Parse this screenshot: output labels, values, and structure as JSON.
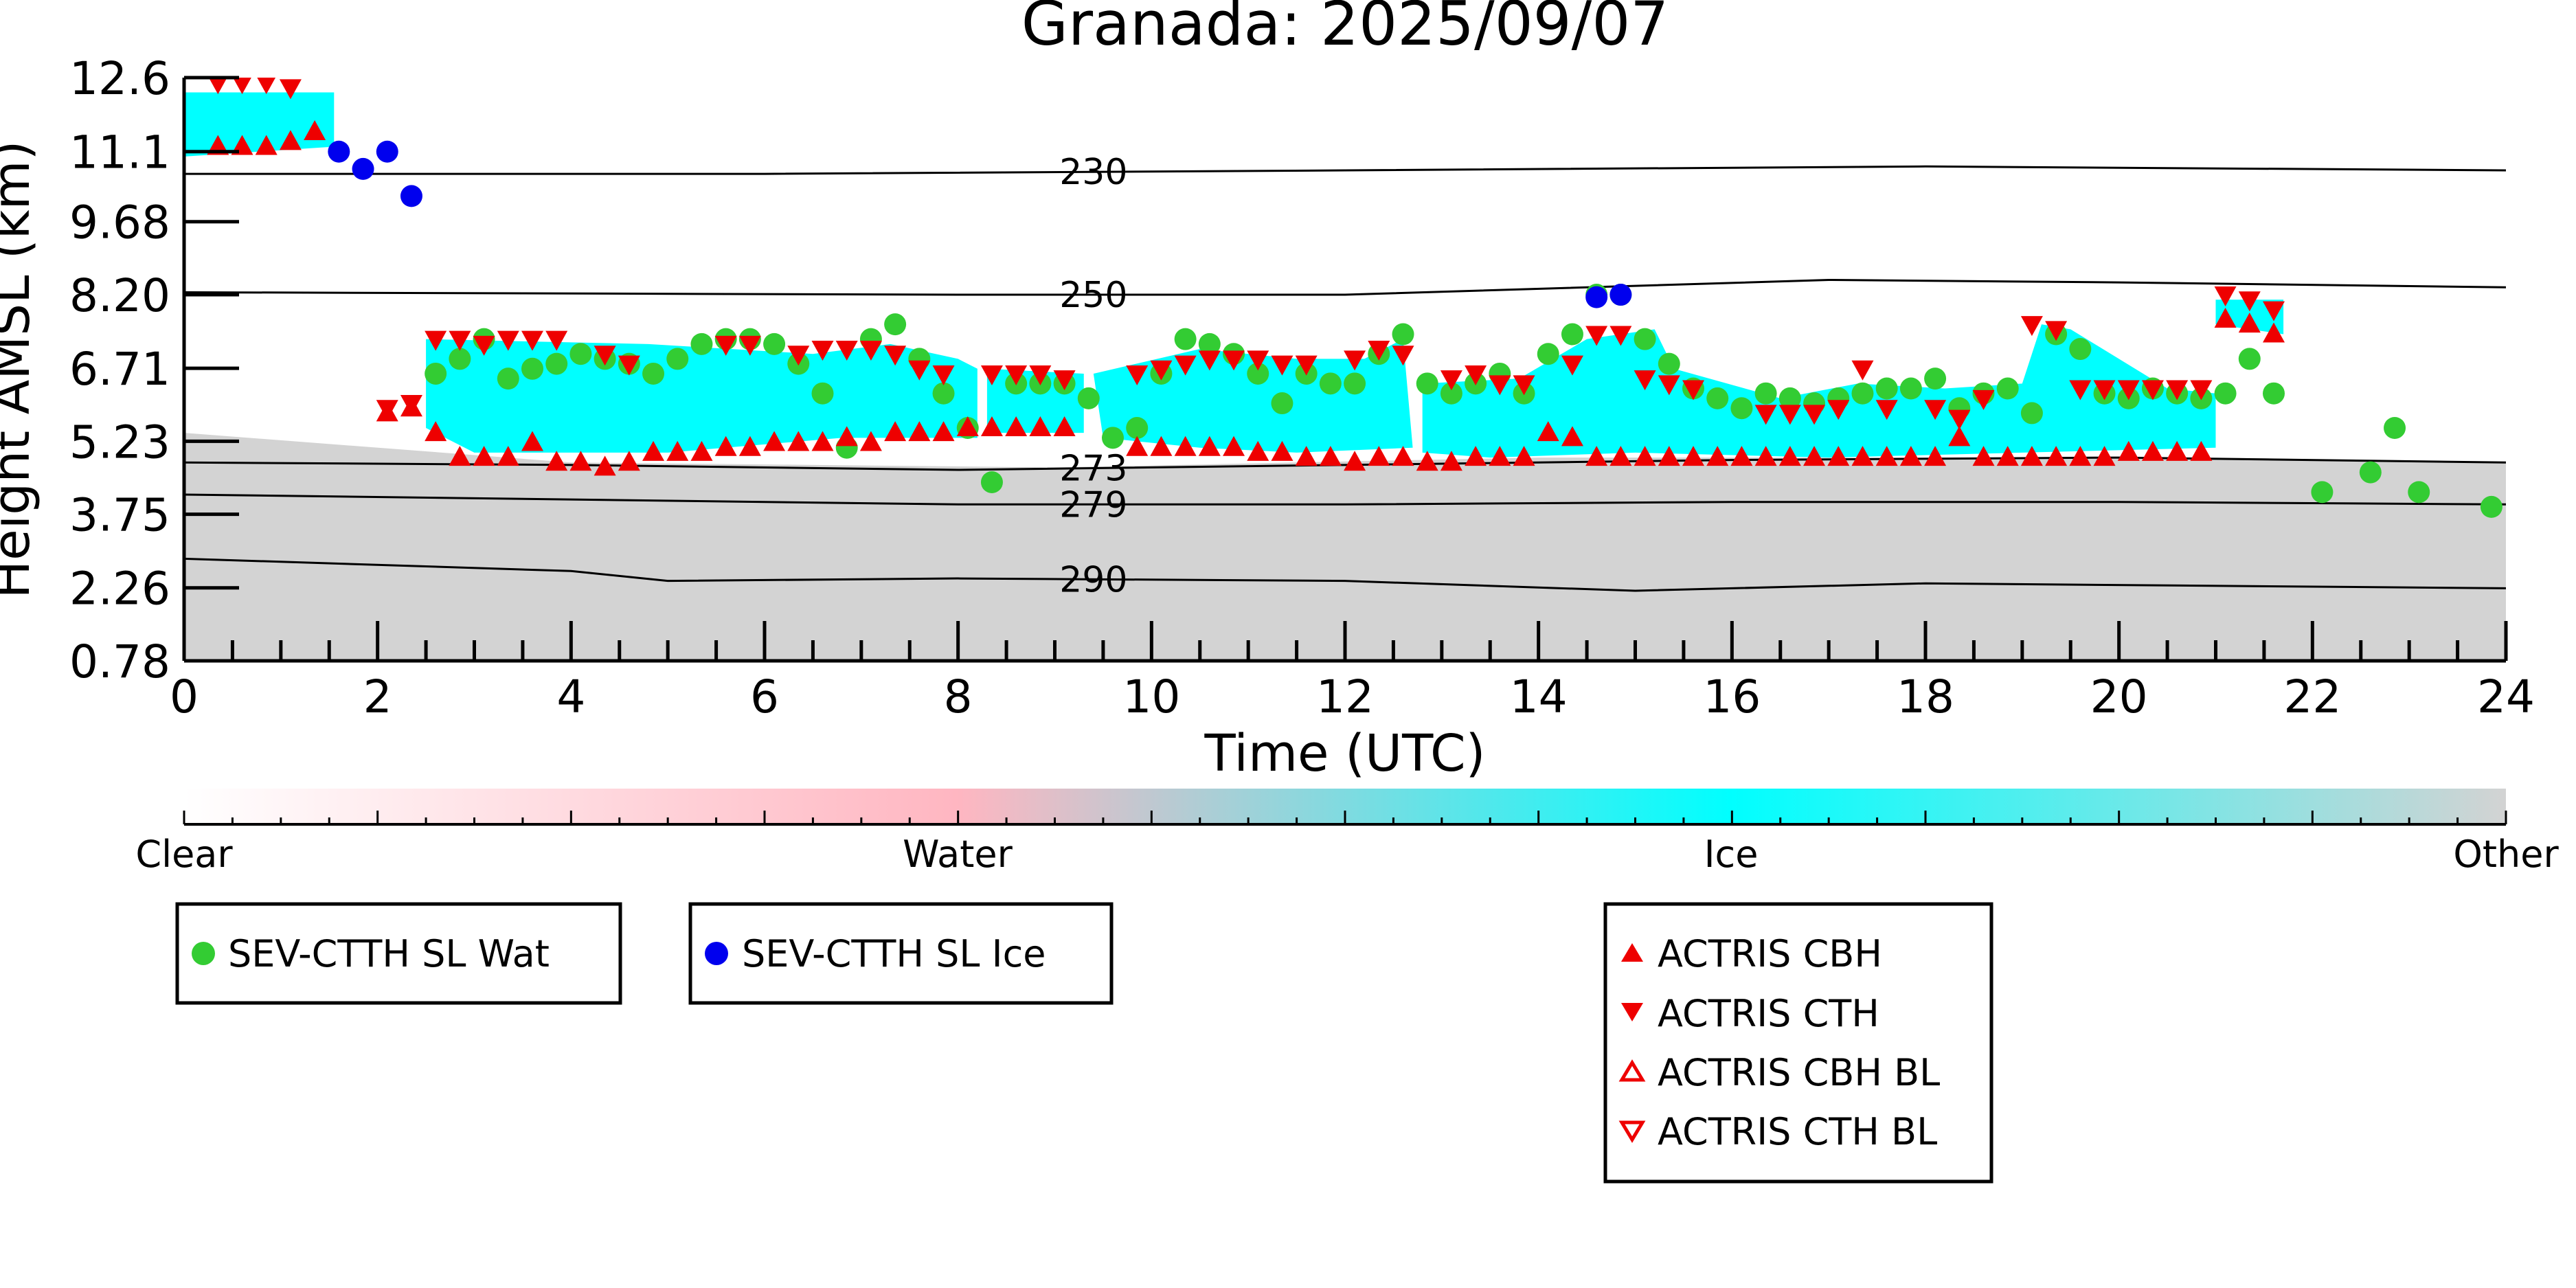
{
  "chart_data": {
    "type": "scatter",
    "title": "Granada: 2025/09/07",
    "xlabel": "Time (UTC)",
    "ylabel": "Height AMSL (km)",
    "xlim": [
      0,
      24
    ],
    "ylim": [
      0.78,
      12.6
    ],
    "xticks": [
      "0",
      "2",
      "4",
      "6",
      "8",
      "10",
      "12",
      "14",
      "16",
      "18",
      "20",
      "22",
      "24"
    ],
    "yticks": [
      "0.78",
      "2.26",
      "3.75",
      "5.23",
      "6.71",
      "8.20",
      "9.68",
      "11.1",
      "12.6"
    ],
    "colorbar": {
      "labels": [
        "Clear",
        "Water",
        "Ice",
        "Other"
      ],
      "colors": [
        "#ffffff",
        "#ffb6c1",
        "#00ffff",
        "#d3d3d3"
      ]
    },
    "contours": [
      {
        "label": "230",
        "points": [
          [
            0,
            10.65
          ],
          [
            6,
            10.65
          ],
          [
            12,
            10.72
          ],
          [
            18,
            10.8
          ],
          [
            24,
            10.72
          ]
        ]
      },
      {
        "label": "250",
        "points": [
          [
            0,
            8.25
          ],
          [
            8,
            8.2
          ],
          [
            12,
            8.2
          ],
          [
            17,
            8.5
          ],
          [
            20,
            8.45
          ],
          [
            24,
            8.35
          ]
        ]
      },
      {
        "label": "273",
        "points": [
          [
            0,
            4.8
          ],
          [
            4,
            4.75
          ],
          [
            8,
            4.65
          ],
          [
            12,
            4.75
          ],
          [
            16,
            4.85
          ],
          [
            20,
            4.9
          ],
          [
            24,
            4.8
          ]
        ]
      },
      {
        "label": "279",
        "points": [
          [
            0,
            4.15
          ],
          [
            4,
            4.05
          ],
          [
            8,
            3.95
          ],
          [
            12,
            3.95
          ],
          [
            16,
            4.0
          ],
          [
            20,
            4.0
          ],
          [
            24,
            3.95
          ]
        ]
      },
      {
        "label": "290",
        "points": [
          [
            0,
            2.85
          ],
          [
            4,
            2.6
          ],
          [
            5,
            2.4
          ],
          [
            8,
            2.45
          ],
          [
            12,
            2.4
          ],
          [
            15,
            2.2
          ],
          [
            18,
            2.35
          ],
          [
            24,
            2.25
          ]
        ]
      }
    ],
    "background_regions": [
      {
        "class": "Other",
        "color": "#d3d3d3",
        "points": [
          [
            0,
            0.78
          ],
          [
            24,
            0.78
          ],
          [
            24,
            4.8
          ],
          [
            21,
            4.9
          ],
          [
            14,
            4.9
          ],
          [
            9,
            4.7
          ],
          [
            4,
            4.8
          ],
          [
            0,
            5.4
          ],
          [
            0,
            5.7
          ]
        ]
      },
      {
        "class": "Ice",
        "color": "#00ffff",
        "points": [
          [
            0,
            12.3
          ],
          [
            1.55,
            12.3
          ],
          [
            1.55,
            11.2
          ],
          [
            0,
            11.0
          ]
        ]
      },
      {
        "class": "Ice",
        "color": "#00ffff",
        "points": [
          [
            2.5,
            7.3
          ],
          [
            4.8,
            7.2
          ],
          [
            6.5,
            7.0
          ],
          [
            7.3,
            7.2
          ],
          [
            8.0,
            6.9
          ],
          [
            8.2,
            6.7
          ],
          [
            8.2,
            5.3
          ],
          [
            6.8,
            5.3
          ],
          [
            5.0,
            5.0
          ],
          [
            4.2,
            5.0
          ],
          [
            3.0,
            5.0
          ],
          [
            2.5,
            5.5
          ]
        ]
      },
      {
        "class": "Ice",
        "color": "#00ffff",
        "points": [
          [
            8.3,
            6.7
          ],
          [
            9.3,
            6.6
          ],
          [
            9.3,
            5.4
          ],
          [
            8.3,
            5.4
          ]
        ]
      },
      {
        "class": "Ice",
        "color": "#00ffff",
        "points": [
          [
            9.4,
            6.6
          ],
          [
            10.5,
            7.1
          ],
          [
            11.5,
            6.9
          ],
          [
            12.2,
            6.9
          ],
          [
            12.6,
            7.3
          ],
          [
            12.7,
            5.1
          ],
          [
            11.5,
            5.0
          ],
          [
            10.5,
            5.1
          ],
          [
            9.5,
            5.3
          ]
        ]
      },
      {
        "class": "Ice",
        "color": "#00ffff",
        "points": [
          [
            12.8,
            6.4
          ],
          [
            13.8,
            6.5
          ],
          [
            14.5,
            7.3
          ],
          [
            15.2,
            7.5
          ],
          [
            15.4,
            6.7
          ],
          [
            16.5,
            6.1
          ],
          [
            17.3,
            6.4
          ],
          [
            18.2,
            6.3
          ],
          [
            19.0,
            6.4
          ],
          [
            19.2,
            7.6
          ],
          [
            19.5,
            7.5
          ],
          [
            20.5,
            6.3
          ],
          [
            21.0,
            6.2
          ],
          [
            21.0,
            5.1
          ],
          [
            19.0,
            5.0
          ],
          [
            17.0,
            4.9
          ],
          [
            15.0,
            5.0
          ],
          [
            13.5,
            4.9
          ],
          [
            12.8,
            5.0
          ]
        ]
      },
      {
        "class": "Ice",
        "color": "#00ffff",
        "points": [
          [
            21.0,
            8.1
          ],
          [
            21.7,
            8.1
          ],
          [
            21.7,
            7.4
          ],
          [
            21.0,
            7.6
          ]
        ]
      }
    ],
    "series": [
      {
        "name": "SEV-CTTH SL Wat",
        "marker": "circle",
        "color": "#33cc33",
        "x": [
          2.6,
          2.85,
          3.1,
          3.35,
          3.6,
          3.85,
          4.1,
          4.35,
          4.6,
          4.85,
          5.1,
          5.35,
          5.6,
          5.85,
          6.1,
          6.35,
          6.6,
          6.85,
          7.1,
          7.35,
          7.6,
          7.85,
          8.1,
          8.35,
          8.6,
          8.85,
          9.1,
          9.35,
          9.6,
          9.85,
          10.1,
          10.35,
          10.6,
          10.85,
          11.1,
          11.35,
          11.6,
          11.85,
          12.1,
          12.35,
          12.6,
          12.85,
          13.1,
          13.35,
          13.6,
          13.85,
          14.1,
          14.35,
          14.6,
          14.85,
          15.1,
          15.35,
          15.6,
          15.85,
          16.1,
          16.35,
          16.6,
          16.85,
          17.1,
          17.35,
          17.6,
          17.85,
          18.1,
          18.35,
          18.6,
          18.85,
          19.1,
          19.35,
          19.6,
          19.85,
          20.1,
          20.35,
          20.6,
          20.85,
          21.1,
          21.35,
          21.6,
          22.1,
          22.6,
          22.85,
          23.1,
          23.85
        ],
        "y": [
          6.6,
          6.9,
          7.3,
          6.5,
          6.7,
          6.8,
          7.0,
          6.9,
          6.8,
          6.6,
          6.9,
          7.2,
          7.3,
          7.3,
          7.2,
          6.8,
          6.2,
          5.1,
          7.3,
          7.6,
          6.9,
          6.2,
          5.5,
          4.4,
          6.4,
          6.4,
          6.4,
          6.1,
          5.3,
          5.5,
          6.6,
          7.3,
          7.2,
          7.0,
          6.6,
          6.0,
          6.6,
          6.4,
          6.4,
          7.0,
          7.4,
          6.4,
          6.2,
          6.4,
          6.6,
          6.2,
          7.0,
          7.4,
          8.2,
          8.2,
          7.3,
          6.8,
          6.3,
          6.1,
          5.9,
          6.2,
          6.1,
          6.0,
          6.1,
          6.2,
          6.3,
          6.3,
          6.5,
          5.9,
          6.2,
          6.3,
          5.8,
          7.4,
          7.1,
          6.2,
          6.1,
          6.3,
          6.2,
          6.1,
          6.2,
          6.9,
          6.2,
          4.2,
          4.6,
          5.5,
          4.2,
          3.9
        ]
      },
      {
        "name": "SEV-CTTH SL Ice",
        "marker": "circle",
        "color": "#0000ee",
        "x": [
          1.6,
          1.85,
          2.1,
          2.35,
          14.6,
          14.85
        ],
        "y": [
          11.1,
          10.75,
          11.1,
          10.2,
          8.15,
          8.2
        ]
      },
      {
        "name": "ACTRIS CBH",
        "marker": "triangle-up",
        "color": "#ee0000",
        "x": [
          0.35,
          0.6,
          0.85,
          1.1,
          1.35,
          2.1,
          2.35,
          2.6,
          2.85,
          3.1,
          3.35,
          3.6,
          3.85,
          4.1,
          4.35,
          4.6,
          4.85,
          5.1,
          5.35,
          5.6,
          5.85,
          6.1,
          6.35,
          6.6,
          6.85,
          7.1,
          7.35,
          7.6,
          7.85,
          8.1,
          8.35,
          8.6,
          8.85,
          9.1,
          9.85,
          10.1,
          10.35,
          10.6,
          10.85,
          11.1,
          11.35,
          11.6,
          11.85,
          12.1,
          12.35,
          12.6,
          12.85,
          13.1,
          13.35,
          13.6,
          13.85,
          14.1,
          14.35,
          14.6,
          14.85,
          15.1,
          15.35,
          15.6,
          15.85,
          16.1,
          16.35,
          16.6,
          16.85,
          17.1,
          17.35,
          17.6,
          17.85,
          18.1,
          18.35,
          18.6,
          18.85,
          19.1,
          19.35,
          19.6,
          19.85,
          20.1,
          20.35,
          20.6,
          20.85,
          21.1,
          21.35,
          21.6
        ],
        "y": [
          11.2,
          11.2,
          11.2,
          11.3,
          11.5,
          5.8,
          5.9,
          5.4,
          4.9,
          4.9,
          4.9,
          5.2,
          4.8,
          4.8,
          4.7,
          4.8,
          5.0,
          5.0,
          5.0,
          5.1,
          5.1,
          5.2,
          5.2,
          5.2,
          5.3,
          5.2,
          5.4,
          5.4,
          5.4,
          5.5,
          5.5,
          5.5,
          5.5,
          5.5,
          5.1,
          5.1,
          5.1,
          5.1,
          5.1,
          5.0,
          5.0,
          4.9,
          4.9,
          4.8,
          4.9,
          4.9,
          4.8,
          4.8,
          4.9,
          4.9,
          4.9,
          5.4,
          5.3,
          4.9,
          4.9,
          4.9,
          4.9,
          4.9,
          4.9,
          4.9,
          4.9,
          4.9,
          4.9,
          4.9,
          4.9,
          4.9,
          4.9,
          4.9,
          5.3,
          4.9,
          4.9,
          4.9,
          4.9,
          4.9,
          4.9,
          5.0,
          5.0,
          5.0,
          5.0,
          7.7,
          7.6,
          7.4
        ]
      },
      {
        "name": "ACTRIS CTH",
        "marker": "triangle-down",
        "color": "#ee0000",
        "x": [
          0.35,
          0.6,
          0.85,
          1.1,
          2.1,
          2.35,
          2.6,
          2.85,
          3.1,
          3.35,
          3.6,
          3.85,
          4.35,
          4.6,
          5.6,
          5.85,
          6.35,
          6.6,
          6.85,
          7.1,
          7.35,
          7.6,
          7.85,
          8.35,
          8.6,
          8.85,
          9.1,
          9.85,
          10.1,
          10.35,
          10.6,
          10.85,
          11.1,
          11.35,
          11.6,
          12.1,
          12.35,
          12.6,
          13.1,
          13.35,
          13.6,
          13.85,
          14.35,
          14.6,
          14.85,
          15.1,
          15.35,
          15.6,
          16.35,
          16.6,
          16.85,
          17.1,
          17.35,
          17.6,
          18.1,
          18.35,
          18.6,
          19.1,
          19.35,
          19.6,
          19.85,
          20.1,
          20.35,
          20.6,
          20.85,
          21.1,
          21.35,
          21.6
        ],
        "y": [
          12.5,
          12.5,
          12.5,
          12.4,
          5.9,
          6.0,
          7.3,
          7.3,
          7.2,
          7.3,
          7.3,
          7.3,
          7.0,
          6.8,
          7.2,
          7.2,
          7.0,
          7.1,
          7.1,
          7.1,
          7.0,
          6.7,
          6.6,
          6.6,
          6.6,
          6.6,
          6.5,
          6.6,
          6.7,
          6.8,
          6.9,
          6.9,
          6.9,
          6.8,
          6.8,
          6.9,
          7.1,
          7.0,
          6.5,
          6.6,
          6.4,
          6.4,
          6.8,
          7.4,
          7.4,
          6.5,
          6.4,
          6.3,
          5.8,
          5.8,
          5.8,
          5.9,
          6.7,
          5.9,
          5.9,
          5.7,
          6.1,
          7.6,
          7.5,
          6.3,
          6.3,
          6.3,
          6.3,
          6.3,
          6.3,
          8.2,
          8.1,
          7.9
        ]
      }
    ],
    "legend": [
      {
        "label": "SEV-CTTH SL Wat",
        "marker": "circle",
        "color": "#33cc33"
      },
      {
        "label": "SEV-CTTH SL Ice",
        "marker": "circle",
        "color": "#0000ee"
      },
      {
        "label": "ACTRIS CBH",
        "marker": "triangle-up",
        "color": "#ee0000"
      },
      {
        "label": "ACTRIS CTH",
        "marker": "triangle-down",
        "color": "#ee0000"
      },
      {
        "label": "ACTRIS CBH BL",
        "marker": "triangle-up-open",
        "color": "#ee0000"
      },
      {
        "label": "ACTRIS CTH BL",
        "marker": "triangle-down-open",
        "color": "#ee0000"
      }
    ]
  }
}
